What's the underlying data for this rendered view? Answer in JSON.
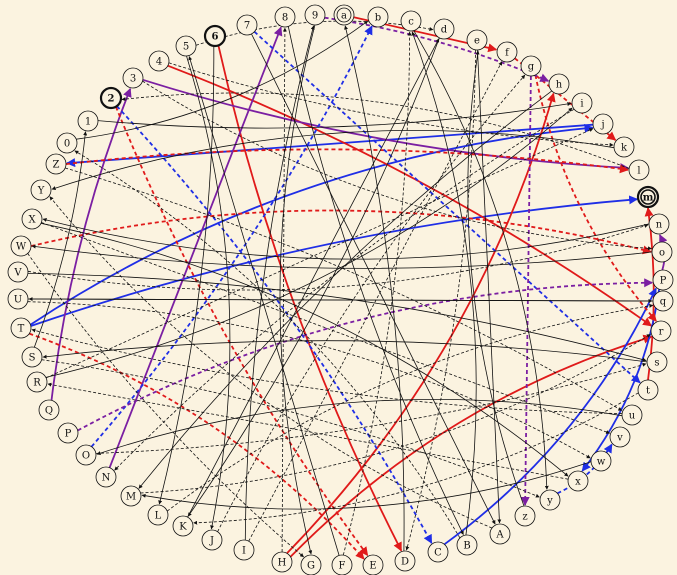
{
  "diagram": {
    "background": "#fbf3e0",
    "nodes": [
      {
        "id": "a",
        "label": "a",
        "style": "double"
      },
      {
        "id": "b",
        "label": "b"
      },
      {
        "id": "c",
        "label": "c"
      },
      {
        "id": "d",
        "label": "d"
      },
      {
        "id": "e",
        "label": "e"
      },
      {
        "id": "f",
        "label": "f"
      },
      {
        "id": "g",
        "label": "g"
      },
      {
        "id": "h",
        "label": "h"
      },
      {
        "id": "i",
        "label": "i"
      },
      {
        "id": "j",
        "label": "j"
      },
      {
        "id": "k",
        "label": "k"
      },
      {
        "id": "l",
        "label": "l"
      },
      {
        "id": "m",
        "label": "m",
        "style": "thick-double"
      },
      {
        "id": "n",
        "label": "n"
      },
      {
        "id": "o",
        "label": "o"
      },
      {
        "id": "P",
        "label": "P"
      },
      {
        "id": "q",
        "label": "q"
      },
      {
        "id": "r",
        "label": "r"
      },
      {
        "id": "s",
        "label": "s"
      },
      {
        "id": "t",
        "label": "t"
      },
      {
        "id": "u",
        "label": "u"
      },
      {
        "id": "v",
        "label": "v"
      },
      {
        "id": "w",
        "label": "w"
      },
      {
        "id": "x",
        "label": "x"
      },
      {
        "id": "y",
        "label": "y"
      },
      {
        "id": "z",
        "label": "z"
      },
      {
        "id": "A",
        "label": "A"
      },
      {
        "id": "B",
        "label": "B"
      },
      {
        "id": "C",
        "label": "C"
      },
      {
        "id": "D",
        "label": "D"
      },
      {
        "id": "E",
        "label": "E"
      },
      {
        "id": "F",
        "label": "F"
      },
      {
        "id": "G",
        "label": "G"
      },
      {
        "id": "H",
        "label": "H"
      },
      {
        "id": "I",
        "label": "I"
      },
      {
        "id": "J",
        "label": "J"
      },
      {
        "id": "K",
        "label": "K"
      },
      {
        "id": "L",
        "label": "L"
      },
      {
        "id": "M",
        "label": "M"
      },
      {
        "id": "N",
        "label": "N"
      },
      {
        "id": "O",
        "label": "O"
      },
      {
        "id": "P2",
        "label": "P"
      },
      {
        "id": "Q",
        "label": "Q"
      },
      {
        "id": "R",
        "label": "R"
      },
      {
        "id": "S",
        "label": "S"
      },
      {
        "id": "T",
        "label": "T"
      },
      {
        "id": "U",
        "label": "U"
      },
      {
        "id": "V",
        "label": "V"
      },
      {
        "id": "W",
        "label": "W"
      },
      {
        "id": "X",
        "label": "X"
      },
      {
        "id": "Y",
        "label": "Y"
      },
      {
        "id": "Z",
        "label": "Z"
      },
      {
        "id": "n0",
        "label": "0"
      },
      {
        "id": "n1",
        "label": "1"
      },
      {
        "id": "n2",
        "label": "2",
        "style": "thick"
      },
      {
        "id": "n3",
        "label": "3"
      },
      {
        "id": "n4",
        "label": "4"
      },
      {
        "id": "n5",
        "label": "5"
      },
      {
        "id": "n6",
        "label": "6",
        "style": "thick"
      },
      {
        "id": "n7",
        "label": "7"
      },
      {
        "id": "n8",
        "label": "8"
      },
      {
        "id": "n9",
        "label": "9"
      }
    ],
    "edges": [
      {
        "from": "T",
        "to": "j",
        "color": "#1f2ee6",
        "style": "solid",
        "bold": true
      },
      {
        "from": "T",
        "to": "m",
        "color": "#1f2ee6",
        "style": "solid",
        "bold": true
      },
      {
        "from": "j",
        "to": "Z",
        "color": "#1f2ee6",
        "style": "solid",
        "bold": true
      },
      {
        "from": "n6",
        "to": "D",
        "color": "#e01a1a",
        "style": "solid",
        "bold": true
      },
      {
        "from": "H",
        "to": "h",
        "color": "#e01a1a",
        "style": "solid",
        "bold": true
      },
      {
        "from": "H",
        "to": "r",
        "color": "#e01a1a",
        "style": "solid",
        "bold": true
      },
      {
        "from": "n4",
        "to": "r",
        "color": "#e01a1a",
        "style": "solid",
        "bold": true
      },
      {
        "from": "a",
        "to": "f",
        "color": "#e01a1a",
        "style": "solid",
        "bold": true
      },
      {
        "from": "t",
        "to": "m",
        "color": "#e01a1a",
        "style": "solid",
        "bold": true
      },
      {
        "from": "C",
        "to": "P",
        "color": "#1f2ee6",
        "style": "solid",
        "bold": true
      },
      {
        "from": "P",
        "to": "x",
        "color": "#1f2ee6",
        "style": "solid",
        "bold": true
      },
      {
        "from": "Q",
        "to": "n3",
        "color": "#7b1fa2",
        "style": "solid",
        "bold": true
      },
      {
        "from": "N",
        "to": "n8",
        "color": "#7b1fa2",
        "style": "solid",
        "bold": true
      },
      {
        "from": "n3",
        "to": "l",
        "color": "#7b1fa2",
        "style": "solid",
        "bold": true
      },
      {
        "from": "P",
        "to": "n",
        "color": "#7b1fa2",
        "style": "solid",
        "bold": true
      },
      {
        "from": "W",
        "to": "o",
        "color": "#e01a1a",
        "style": "dashed",
        "bold": true
      },
      {
        "from": "Z",
        "to": "l",
        "color": "#e01a1a",
        "style": "dashed",
        "bold": true
      },
      {
        "from": "f",
        "to": "k",
        "color": "#e01a1a",
        "style": "dashed",
        "bold": true
      },
      {
        "from": "n2",
        "to": "E",
        "color": "#e01a1a",
        "style": "dashed",
        "bold": true
      },
      {
        "from": "g",
        "to": "r",
        "color": "#e01a1a",
        "style": "dashed",
        "bold": true
      },
      {
        "from": "T",
        "to": "E",
        "color": "#e01a1a",
        "style": "dashed",
        "bold": true
      },
      {
        "from": "n2",
        "to": "C",
        "color": "#1f2ee6",
        "style": "dashed",
        "bold": true
      },
      {
        "from": "n7",
        "to": "t",
        "color": "#1f2ee6",
        "style": "dashed",
        "bold": true
      },
      {
        "from": "O",
        "to": "b",
        "color": "#1f2ee6",
        "style": "dashed",
        "bold": true
      },
      {
        "from": "y",
        "to": "v",
        "color": "#1f2ee6",
        "style": "dashed",
        "bold": true
      },
      {
        "from": "P2",
        "to": "P",
        "color": "#7b1fa2",
        "style": "dashed",
        "bold": true
      },
      {
        "from": "n9",
        "to": "h",
        "color": "#7b1fa2",
        "style": "dashed",
        "bold": true
      },
      {
        "from": "g",
        "to": "z",
        "color": "#7b1fa2",
        "style": "dashed",
        "bold": true
      },
      {
        "from": "n1",
        "to": "i",
        "color": "#111111",
        "style": "solid"
      },
      {
        "from": "n0",
        "to": "b",
        "color": "#111111",
        "style": "solid"
      },
      {
        "from": "X",
        "to": "x",
        "color": "#111111",
        "style": "solid"
      },
      {
        "from": "V",
        "to": "s",
        "color": "#111111",
        "style": "solid"
      },
      {
        "from": "U",
        "to": "q",
        "color": "#111111",
        "style": "solid"
      },
      {
        "from": "S",
        "to": "n1",
        "color": "#111111",
        "style": "solid"
      },
      {
        "from": "R",
        "to": "i",
        "color": "#111111",
        "style": "solid"
      },
      {
        "from": "n5",
        "to": "J",
        "color": "#111111",
        "style": "solid"
      },
      {
        "from": "n6",
        "to": "L",
        "color": "#111111",
        "style": "solid"
      },
      {
        "from": "n7",
        "to": "A",
        "color": "#111111",
        "style": "solid"
      },
      {
        "from": "n8",
        "to": "B",
        "color": "#111111",
        "style": "solid"
      },
      {
        "from": "n9",
        "to": "G",
        "color": "#111111",
        "style": "solid"
      },
      {
        "from": "c",
        "to": "y",
        "color": "#111111",
        "style": "solid"
      },
      {
        "from": "d",
        "to": "K",
        "color": "#111111",
        "style": "solid"
      },
      {
        "from": "e",
        "to": "A",
        "color": "#111111",
        "style": "solid"
      },
      {
        "from": "h",
        "to": "M",
        "color": "#111111",
        "style": "solid"
      },
      {
        "from": "k",
        "to": "Y",
        "color": "#111111",
        "style": "solid"
      },
      {
        "from": "n",
        "to": "X",
        "color": "#111111",
        "style": "solid"
      },
      {
        "from": "o",
        "to": "W",
        "color": "#111111",
        "style": "solid"
      },
      {
        "from": "q",
        "to": "U",
        "color": "#111111",
        "style": "solid"
      },
      {
        "from": "s",
        "to": "S",
        "color": "#111111",
        "style": "solid"
      },
      {
        "from": "u",
        "to": "O",
        "color": "#111111",
        "style": "solid"
      },
      {
        "from": "w",
        "to": "M",
        "color": "#111111",
        "style": "solid"
      },
      {
        "from": "I",
        "to": "n9",
        "color": "#111111",
        "style": "solid"
      },
      {
        "from": "F",
        "to": "n5",
        "color": "#111111",
        "style": "solid"
      },
      {
        "from": "D",
        "to": "a",
        "color": "#111111",
        "style": "solid"
      },
      {
        "from": "B",
        "to": "c",
        "color": "#111111",
        "style": "solid"
      },
      {
        "from": "z",
        "to": "e",
        "color": "#111111",
        "style": "solid"
      },
      {
        "from": "Y",
        "to": "p",
        "color": "#111111",
        "style": "solid"
      },
      {
        "from": "K",
        "to": "d",
        "color": "#111111",
        "style": "solid"
      },
      {
        "from": "n4",
        "to": "k",
        "color": "#111111",
        "style": "dashed"
      },
      {
        "from": "n3",
        "to": "o",
        "color": "#111111",
        "style": "dashed"
      },
      {
        "from": "n5",
        "to": "d",
        "color": "#111111",
        "style": "dashed"
      },
      {
        "from": "Z",
        "to": "u",
        "color": "#111111",
        "style": "dashed"
      },
      {
        "from": "X",
        "to": "v",
        "color": "#111111",
        "style": "dashed"
      },
      {
        "from": "W",
        "to": "G",
        "color": "#111111",
        "style": "dashed"
      },
      {
        "from": "V",
        "to": "n",
        "color": "#111111",
        "style": "dashed"
      },
      {
        "from": "U",
        "to": "w",
        "color": "#111111",
        "style": "dashed"
      },
      {
        "from": "S",
        "to": "y",
        "color": "#111111",
        "style": "dashed"
      },
      {
        "from": "R",
        "to": "j",
        "color": "#111111",
        "style": "dashed"
      },
      {
        "from": "O",
        "to": "s",
        "color": "#111111",
        "style": "dashed"
      },
      {
        "from": "M",
        "to": "r",
        "color": "#111111",
        "style": "dashed"
      },
      {
        "from": "L",
        "to": "q",
        "color": "#111111",
        "style": "dashed"
      },
      {
        "from": "J",
        "to": "g",
        "color": "#111111",
        "style": "dashed"
      },
      {
        "from": "I",
        "to": "f",
        "color": "#111111",
        "style": "dashed"
      },
      {
        "from": "F",
        "to": "c",
        "color": "#111111",
        "style": "dashed"
      },
      {
        "from": "B",
        "to": "n0",
        "color": "#111111",
        "style": "dashed"
      },
      {
        "from": "A",
        "to": "Y",
        "color": "#111111",
        "style": "dashed"
      },
      {
        "from": "u",
        "to": "T",
        "color": "#111111",
        "style": "dashed"
      },
      {
        "from": "x",
        "to": "R",
        "color": "#111111",
        "style": "dashed"
      },
      {
        "from": "i",
        "to": "N",
        "color": "#111111",
        "style": "dashed"
      },
      {
        "from": "l",
        "to": "n2",
        "color": "#111111",
        "style": "dashed"
      },
      {
        "from": "t",
        "to": "K",
        "color": "#111111",
        "style": "dashed"
      },
      {
        "from": "e",
        "to": "D",
        "color": "#111111",
        "style": "dashed"
      },
      {
        "from": "H",
        "to": "n8",
        "color": "#111111",
        "style": "dashed"
      }
    ]
  }
}
